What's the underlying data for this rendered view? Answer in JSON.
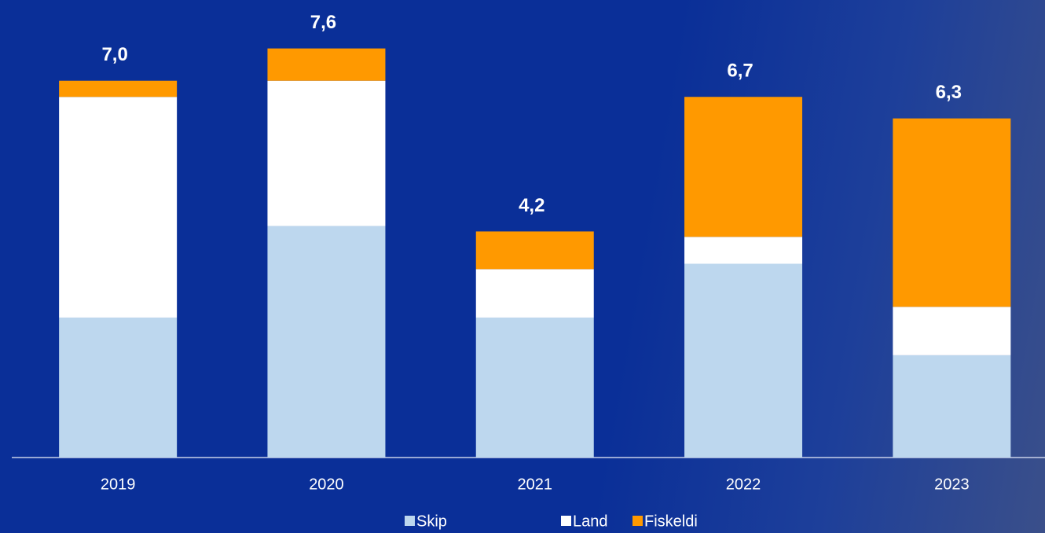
{
  "chart_data": {
    "type": "stacked-bar",
    "categories": [
      "2019",
      "2020",
      "2021",
      "2022",
      "2023"
    ],
    "series": [
      {
        "name": "Skip",
        "color": "#bdd7ee",
        "values": [
          2.6,
          4.3,
          2.6,
          3.6,
          1.9
        ]
      },
      {
        "name": "Land",
        "color": "#ffffff",
        "values": [
          4.1,
          2.7,
          0.9,
          0.5,
          0.9
        ]
      },
      {
        "name": "Fiskeldi",
        "color": "#ff9900",
        "values": [
          0.3,
          0.6,
          0.7,
          2.6,
          3.5
        ]
      }
    ],
    "totals": {
      "values": [
        7.0,
        7.6,
        4.2,
        6.7,
        6.3
      ],
      "value_labels": [
        "7,0",
        "7,6",
        "4,2",
        "6,7",
        "6,3"
      ]
    },
    "ylim": [
      0,
      8.5
    ]
  }
}
